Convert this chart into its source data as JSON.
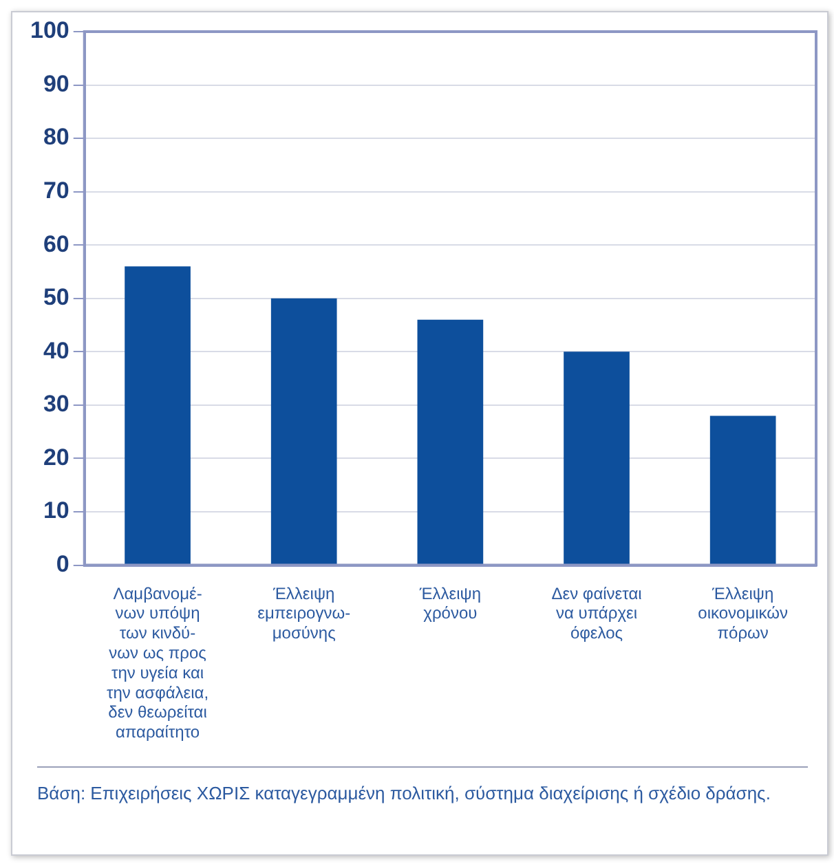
{
  "chart_data": {
    "type": "bar",
    "categories": [
      "Λαμβανομέ-\nνων υπόψη\nτων κινδύ-\nνων ως προς\nτην υγεία και\nτην ασφάλεια,\nδεν θεωρείται\nαπαραίτητο",
      "Έλλειψη\nεμπειρογνω-\nμοσύνης",
      "Έλλειψη\nχρόνου",
      "Δεν φαίνεται\nνα υπάρχει\nόφελος",
      "Έλλειψη\nοικονομικών\nπόρων"
    ],
    "values": [
      56,
      50,
      46,
      40,
      28
    ],
    "color": "#0d4f9c",
    "ylim": [
      0,
      100
    ],
    "yticks": [
      0,
      10,
      20,
      30,
      40,
      50,
      60,
      70,
      80,
      90,
      100
    ],
    "grid": "y",
    "annotations": [
      "Βάση: Επιχειρήσεις ΧΩΡΙΣ καταγεγραμμένη πολιτική, σύστημα διαχείρισης ή σχέδιο δράσης."
    ]
  }
}
